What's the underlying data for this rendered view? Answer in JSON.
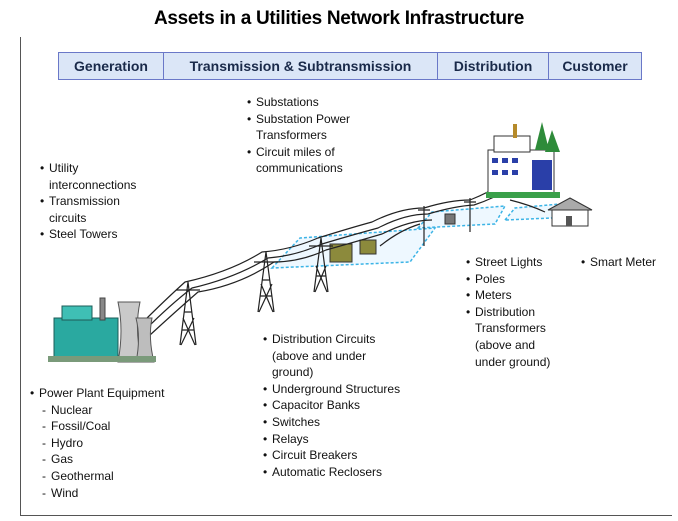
{
  "title": "Assets in a Utilities Network Infrastructure",
  "header": {
    "segments": [
      "Generation",
      "Transmission & Subtransmission",
      "Distribution",
      "Customer"
    ]
  },
  "groups": [
    {
      "items": [
        {
          "lines": [
            "Utility",
            "interconnections"
          ]
        },
        {
          "lines": [
            "Transmission",
            "circuits"
          ]
        },
        {
          "lines": [
            "Steel Towers"
          ]
        }
      ]
    },
    {
      "items": [
        {
          "lines": [
            "Substations"
          ]
        },
        {
          "lines": [
            "Substation Power",
            "Transformers"
          ]
        },
        {
          "lines": [
            "Circuit miles of",
            "communications"
          ]
        }
      ]
    },
    {
      "items": [
        {
          "lines": [
            "Street Lights"
          ]
        },
        {
          "lines": [
            "Poles"
          ]
        },
        {
          "lines": [
            "Meters"
          ]
        },
        {
          "lines": [
            "Distribution",
            "Transformers",
            "(above and",
            "under ground)"
          ]
        }
      ]
    },
    {
      "items": [
        {
          "lines": [
            "Smart Meter"
          ]
        }
      ]
    },
    {
      "items": [
        {
          "lines": [
            "Distribution Circuits",
            "(above and under",
            "ground)"
          ]
        },
        {
          "lines": [
            "Underground Structures"
          ]
        },
        {
          "lines": [
            "Capacitor Banks"
          ]
        },
        {
          "lines": [
            "Switches"
          ]
        },
        {
          "lines": [
            "Relays"
          ]
        },
        {
          "lines": [
            "Circuit Breakers"
          ]
        },
        {
          "lines": [
            "Automatic Reclosers"
          ]
        }
      ]
    },
    {
      "items": [
        {
          "lines": [
            "Power Plant Equipment"
          ],
          "subitems": [
            "Nuclear",
            "Fossil/Coal",
            "Hydro",
            "Gas",
            "Geothermal",
            "Wind"
          ]
        }
      ]
    }
  ]
}
